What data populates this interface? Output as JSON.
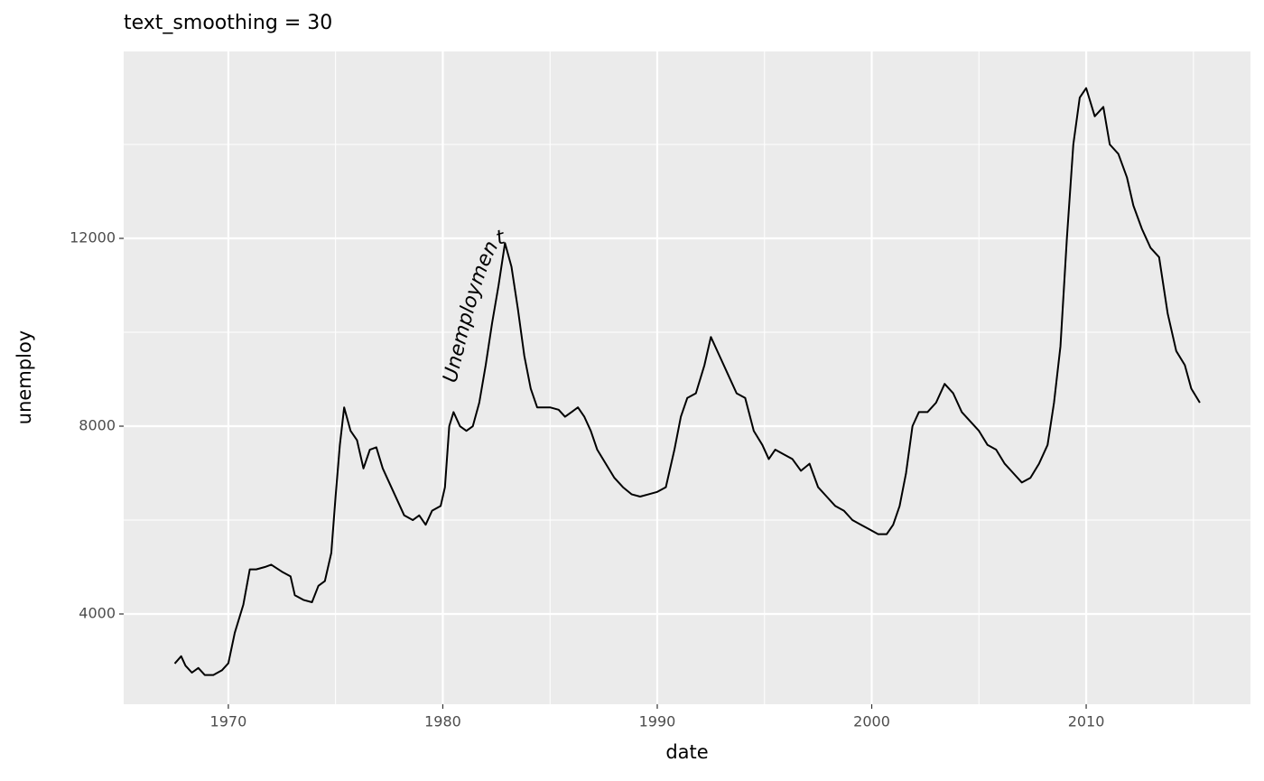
{
  "chart_data": {
    "type": "line",
    "title": "text_smoothing = 30",
    "x_label": "date",
    "y_label": "unemploy",
    "annotation": "Unemployment",
    "color": "#000000",
    "grid": true,
    "xlim": [
      1965.12,
      2017.66
    ],
    "ylim": [
      2077,
      15981
    ],
    "xticks": [
      1970,
      1980,
      1990,
      2000,
      2010
    ],
    "yticks": [
      4000,
      8000,
      12000
    ],
    "xminor": [
      1975,
      1985,
      1995,
      2005,
      2015
    ],
    "yminor": [
      6000,
      10000,
      14000
    ],
    "x": [
      1967.5,
      1967.8,
      1968.0,
      1968.3,
      1968.6,
      1968.9,
      1969.3,
      1969.7,
      1970.0,
      1970.3,
      1970.7,
      1971.0,
      1971.3,
      1971.7,
      1972.0,
      1972.5,
      1972.9,
      1973.1,
      1973.5,
      1973.9,
      1974.2,
      1974.5,
      1974.8,
      1975.0,
      1975.2,
      1975.4,
      1975.7,
      1976.0,
      1976.3,
      1976.6,
      1976.9,
      1977.2,
      1977.5,
      1977.9,
      1978.2,
      1978.6,
      1978.9,
      1979.2,
      1979.5,
      1979.9,
      1980.1,
      1980.3,
      1980.5,
      1980.8,
      1981.1,
      1981.4,
      1981.7,
      1982.0,
      1982.3,
      1982.6,
      1982.9,
      1983.2,
      1983.5,
      1983.8,
      1984.1,
      1984.4,
      1984.7,
      1985.0,
      1985.4,
      1985.7,
      1986.0,
      1986.3,
      1986.6,
      1986.9,
      1987.2,
      1987.6,
      1988.0,
      1988.4,
      1988.8,
      1989.2,
      1989.6,
      1990.0,
      1990.4,
      1990.8,
      1991.1,
      1991.4,
      1991.8,
      1992.2,
      1992.5,
      1992.9,
      1993.3,
      1993.7,
      1994.1,
      1994.5,
      1994.9,
      1995.2,
      1995.5,
      1995.9,
      1996.3,
      1996.7,
      1997.1,
      1997.5,
      1997.9,
      1998.3,
      1998.7,
      1999.1,
      1999.5,
      1999.9,
      2000.3,
      2000.7,
      2001.0,
      2001.3,
      2001.6,
      2001.9,
      2002.2,
      2002.6,
      2003.0,
      2003.4,
      2003.8,
      2004.2,
      2004.6,
      2005.0,
      2005.4,
      2005.8,
      2006.2,
      2006.6,
      2007.0,
      2007.4,
      2007.8,
      2008.2,
      2008.5,
      2008.8,
      2009.1,
      2009.4,
      2009.7,
      2010.0,
      2010.4,
      2010.8,
      2011.1,
      2011.5,
      2011.9,
      2012.2,
      2012.6,
      2013.0,
      2013.4,
      2013.8,
      2014.2,
      2014.6,
      2014.9,
      2015.3
    ],
    "values": [
      2944,
      3100,
      2900,
      2750,
      2850,
      2700,
      2700,
      2800,
      2950,
      3600,
      4200,
      4950,
      4950,
      5000,
      5050,
      4900,
      4800,
      4400,
      4300,
      4250,
      4600,
      4700,
      5300,
      6500,
      7600,
      8400,
      7900,
      7700,
      7100,
      7500,
      7550,
      7100,
      6800,
      6400,
      6100,
      6000,
      6100,
      5900,
      6200,
      6300,
      6700,
      8000,
      8300,
      8000,
      7900,
      8000,
      8500,
      9300,
      10200,
      11000,
      11900,
      11400,
      10500,
      9500,
      8800,
      8400,
      8400,
      8400,
      8350,
      8200,
      8300,
      8400,
      8200,
      7900,
      7500,
      7200,
      6900,
      6700,
      6550,
      6500,
      6550,
      6600,
      6700,
      7500,
      8200,
      8600,
      8700,
      9300,
      9900,
      9500,
      9100,
      8700,
      8600,
      7900,
      7600,
      7300,
      7500,
      7400,
      7300,
      7050,
      7200,
      6700,
      6500,
      6300,
      6200,
      6000,
      5900,
      5800,
      5700,
      5700,
      5900,
      6300,
      7000,
      8000,
      8300,
      8300,
      8500,
      8900,
      8700,
      8300,
      8100,
      7900,
      7600,
      7500,
      7200,
      7000,
      6800,
      6900,
      7200,
      7600,
      8500,
      9700,
      12000,
      14000,
      15000,
      15200,
      14600,
      14800,
      14000,
      13800,
      13300,
      12700,
      12200,
      11800,
      11600,
      10400,
      9600,
      9300,
      8800,
      8500
    ]
  }
}
